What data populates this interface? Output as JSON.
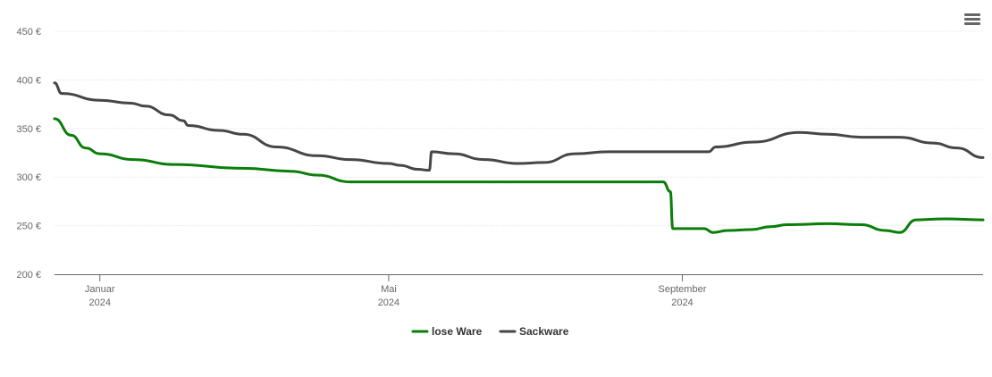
{
  "chart_data": {
    "type": "line",
    "title": "",
    "xlabel": "",
    "ylabel": "",
    "y_ticks": [
      "450 €",
      "400 €",
      "350 €",
      "300 €",
      "250 €",
      "200 €"
    ],
    "ylim": [
      200,
      450
    ],
    "xlim": [
      "2023-12-13",
      "2025-01-05"
    ],
    "x_ticks": [
      {
        "date": "2024-01-01",
        "month": "Januar",
        "year": "2024"
      },
      {
        "date": "2024-05-01",
        "month": "Mai",
        "year": "2024"
      },
      {
        "date": "2024-09-01",
        "month": "September",
        "year": "2024"
      }
    ],
    "grid": true,
    "legend_position": "bottom-center",
    "series": [
      {
        "name": "lose Ware",
        "color": "#0a7d0a",
        "points": [
          [
            "2023-12-13",
            360
          ],
          [
            "2023-12-20",
            343
          ],
          [
            "2023-12-26",
            330
          ],
          [
            "2024-01-01",
            324
          ],
          [
            "2024-01-15",
            318
          ],
          [
            "2024-02-01",
            313
          ],
          [
            "2024-03-01",
            309
          ],
          [
            "2024-03-21",
            306
          ],
          [
            "2024-04-01",
            302
          ],
          [
            "2024-04-15",
            295
          ],
          [
            "2024-05-01",
            295
          ],
          [
            "2024-06-15",
            295
          ],
          [
            "2024-08-24",
            295
          ],
          [
            "2024-08-27",
            285
          ],
          [
            "2024-08-28",
            247
          ],
          [
            "2024-09-01",
            247
          ],
          [
            "2024-09-10",
            247
          ],
          [
            "2024-09-14",
            243
          ],
          [
            "2024-09-20",
            245
          ],
          [
            "2024-09-30",
            246
          ],
          [
            "2024-10-08",
            249
          ],
          [
            "2024-10-15",
            251
          ],
          [
            "2024-11-01",
            252
          ],
          [
            "2024-11-15",
            251
          ],
          [
            "2024-11-25",
            245
          ],
          [
            "2024-12-01",
            243
          ],
          [
            "2024-12-08",
            256
          ],
          [
            "2024-12-20",
            257
          ],
          [
            "2025-01-05",
            256
          ]
        ]
      },
      {
        "name": "Sackware",
        "color": "#464646",
        "points": [
          [
            "2023-12-13",
            397
          ],
          [
            "2023-12-16",
            386
          ],
          [
            "2024-01-01",
            379
          ],
          [
            "2024-01-14",
            376
          ],
          [
            "2024-01-20",
            373
          ],
          [
            "2024-01-30",
            364
          ],
          [
            "2024-02-05",
            358
          ],
          [
            "2024-02-07",
            353
          ],
          [
            "2024-02-20",
            348
          ],
          [
            "2024-03-01",
            344
          ],
          [
            "2024-03-15",
            331
          ],
          [
            "2024-04-01",
            322
          ],
          [
            "2024-04-15",
            318
          ],
          [
            "2024-05-01",
            314
          ],
          [
            "2024-05-06",
            312
          ],
          [
            "2024-05-13",
            308
          ],
          [
            "2024-05-18",
            307
          ],
          [
            "2024-05-19",
            326
          ],
          [
            "2024-05-28",
            324
          ],
          [
            "2024-06-10",
            318
          ],
          [
            "2024-06-24",
            314
          ],
          [
            "2024-07-05",
            315
          ],
          [
            "2024-07-18",
            324
          ],
          [
            "2024-08-01",
            326
          ],
          [
            "2024-09-01",
            326
          ],
          [
            "2024-09-12",
            326
          ],
          [
            "2024-09-15",
            331
          ],
          [
            "2024-10-01",
            336
          ],
          [
            "2024-10-20",
            346
          ],
          [
            "2024-11-01",
            344
          ],
          [
            "2024-11-15",
            341
          ],
          [
            "2024-12-01",
            341
          ],
          [
            "2024-12-15",
            335
          ],
          [
            "2024-12-25",
            330
          ],
          [
            "2025-01-05",
            320
          ]
        ]
      }
    ]
  },
  "toolbar": {
    "menu_icon": "hamburger-menu-icon"
  }
}
